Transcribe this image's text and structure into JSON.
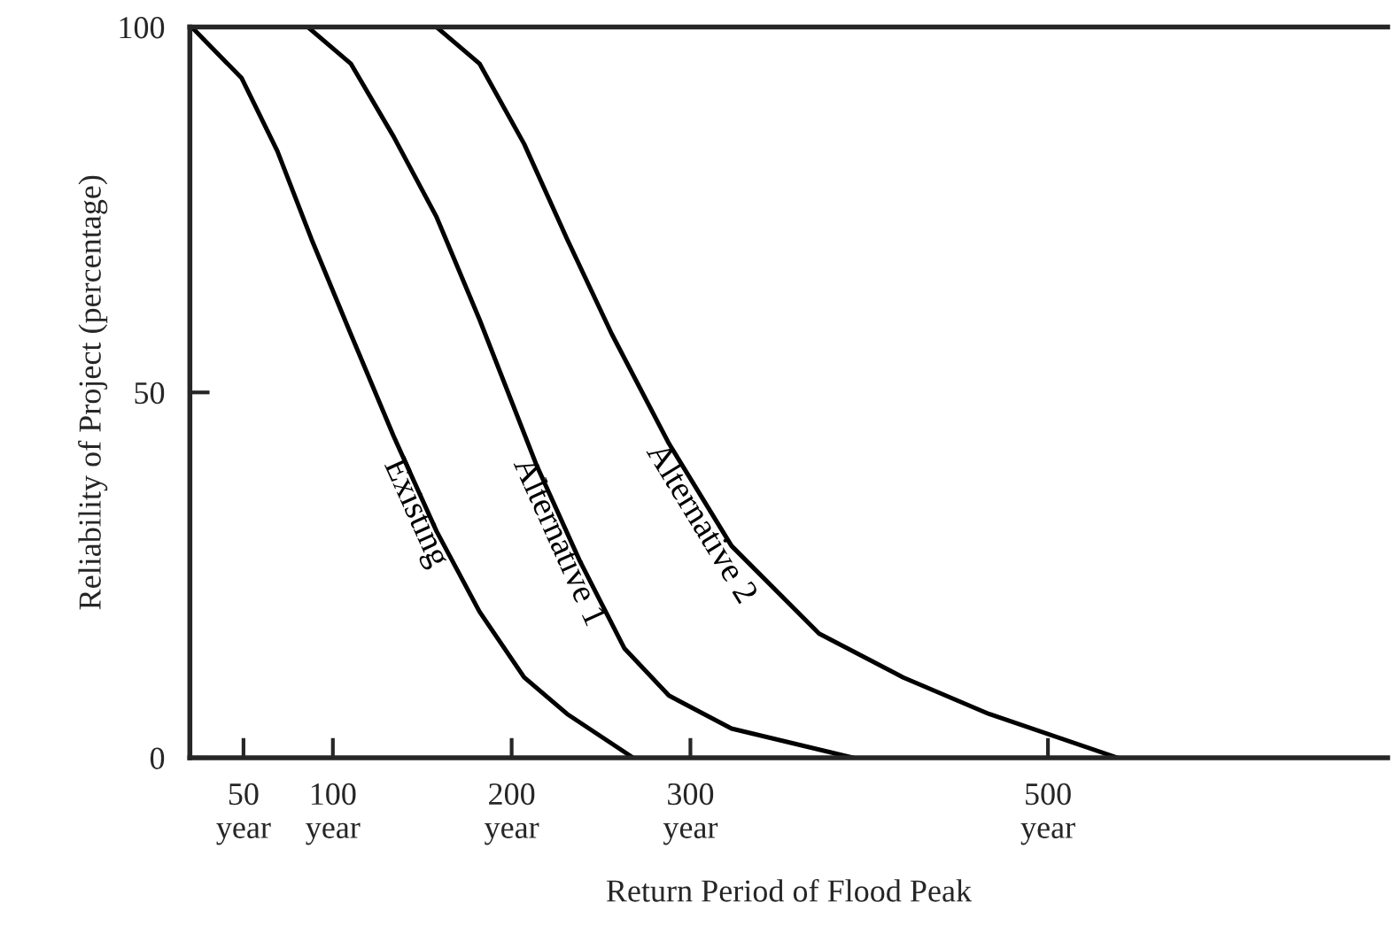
{
  "chart_data": {
    "type": "line",
    "xlabel": "Return Period of Flood Peak",
    "ylabel": "Reliability of Project (percentage)",
    "xlim": [
      20,
      690
    ],
    "ylim": [
      0,
      100
    ],
    "xticks": [
      {
        "value": 50,
        "label": "50\nyear"
      },
      {
        "value": 100,
        "label": "100\nyear"
      },
      {
        "value": 200,
        "label": "200\nyear"
      },
      {
        "value": 300,
        "label": "300\nyear"
      },
      {
        "value": 500,
        "label": "500\nyear"
      }
    ],
    "yticks": [
      0,
      50,
      100
    ],
    "grid": false,
    "legend": false,
    "marker": "none",
    "line_style": "solid",
    "series": [
      {
        "name": "Existing",
        "color": "#000000",
        "x": [
          21,
          49,
          69,
          88,
          110,
          134,
          158,
          182,
          207,
          231,
          268
        ],
        "values": [
          100,
          93,
          83,
          71,
          58,
          44,
          31,
          20,
          11,
          6,
          0
        ]
      },
      {
        "name": "Alternative 1",
        "color": "#000000",
        "x": [
          86,
          110,
          134,
          158,
          182,
          214,
          238,
          263,
          288,
          323,
          391
        ],
        "values": [
          100,
          95,
          85,
          74,
          60,
          40,
          27,
          15,
          8.5,
          4,
          0
        ]
      },
      {
        "name": "Alternative 2",
        "color": "#000000",
        "x": [
          158,
          182,
          207,
          231,
          256,
          288,
          323,
          372,
          419,
          467,
          539
        ],
        "values": [
          100,
          95,
          84,
          71,
          58,
          43,
          29,
          17,
          11,
          6,
          0
        ]
      }
    ]
  }
}
